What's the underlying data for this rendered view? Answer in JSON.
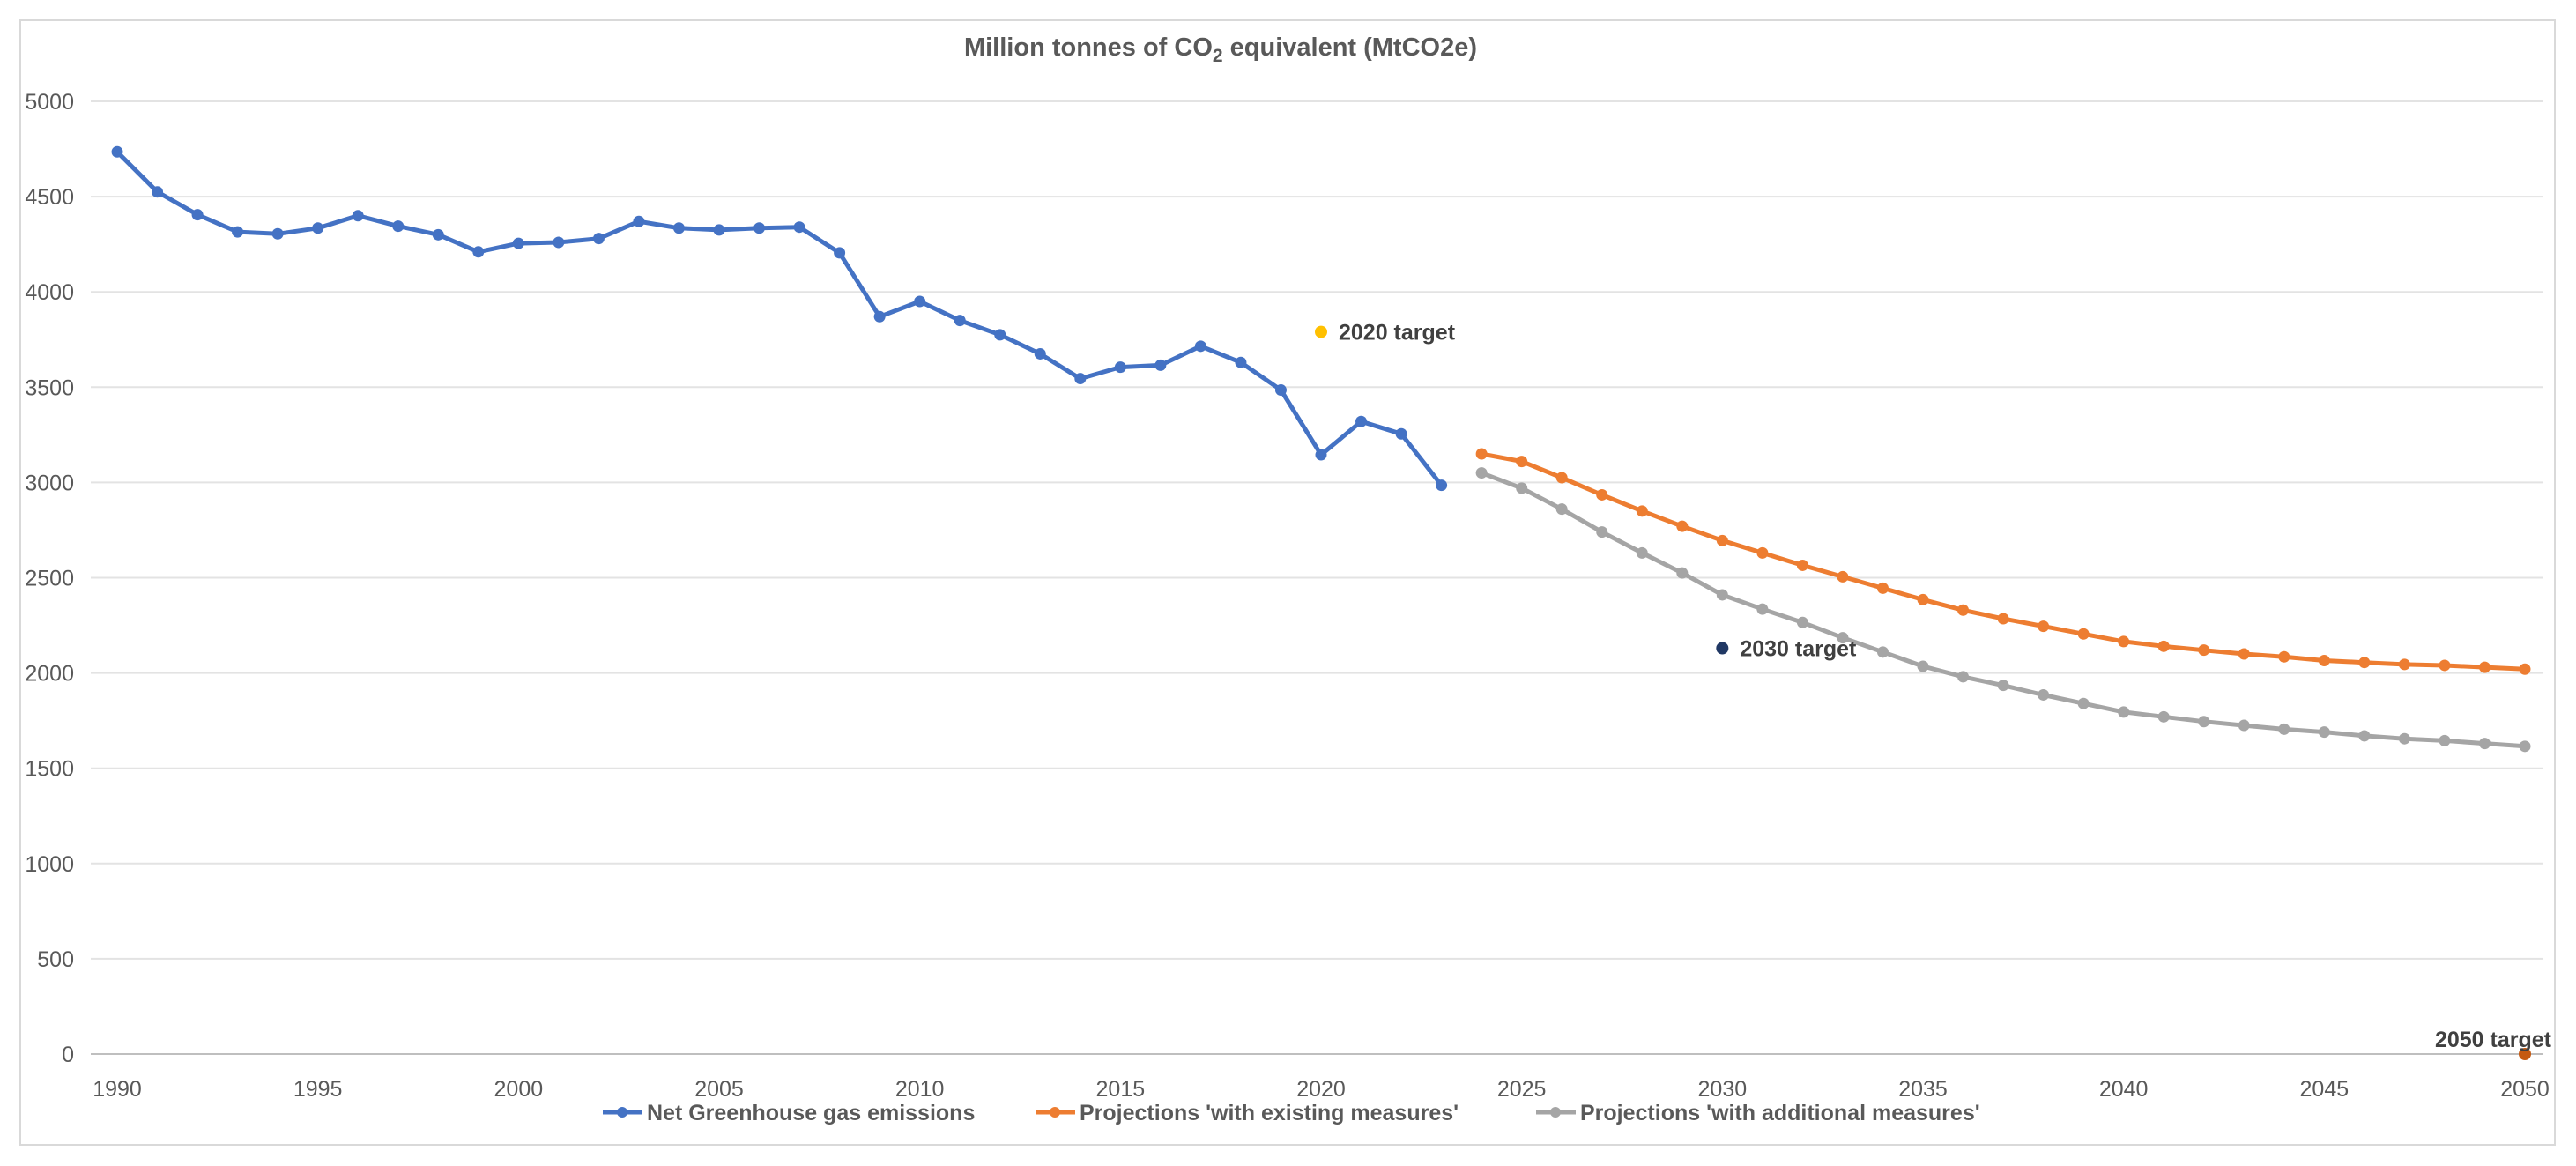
{
  "chart_data": {
    "type": "line",
    "title": {
      "prefix": "Million tonnes of CO",
      "subscript": "2",
      "suffix": " equivalent (MtCO2e)"
    },
    "xlabel": "",
    "ylabel": "",
    "xlim": [
      1990,
      2050
    ],
    "ylim": [
      0,
      5000
    ],
    "x_ticks": [
      1990,
      1995,
      2000,
      2005,
      2010,
      2015,
      2020,
      2025,
      2030,
      2035,
      2040,
      2045,
      2050
    ],
    "y_ticks": [
      0,
      500,
      1000,
      1500,
      2000,
      2500,
      3000,
      3500,
      4000,
      4500,
      5000
    ],
    "grid": "horizontal",
    "legend_position": "bottom",
    "series": [
      {
        "name": "Net Greenhouse gas emissions",
        "color": "#4472c4",
        "x": [
          1990,
          1991,
          1992,
          1993,
          1994,
          1995,
          1996,
          1997,
          1998,
          1999,
          2000,
          2001,
          2002,
          2003,
          2004,
          2005,
          2006,
          2007,
          2008,
          2009,
          2010,
          2011,
          2012,
          2013,
          2014,
          2015,
          2016,
          2017,
          2018,
          2019,
          2020,
          2021,
          2022,
          2023
        ],
        "values": [
          4735,
          4525,
          4405,
          4315,
          4305,
          4335,
          4400,
          4345,
          4300,
          4210,
          4255,
          4260,
          4280,
          4370,
          4335,
          4325,
          4335,
          4340,
          4205,
          3870,
          3950,
          3850,
          3775,
          3675,
          3545,
          3605,
          3615,
          3715,
          3630,
          3485,
          3145,
          3320,
          3255,
          2985
        ]
      },
      {
        "name": "Projections 'with existing measures'",
        "color": "#ed7d31",
        "x": [
          2024,
          2025,
          2026,
          2027,
          2028,
          2029,
          2030,
          2031,
          2032,
          2033,
          2034,
          2035,
          2036,
          2037,
          2038,
          2039,
          2040,
          2041,
          2042,
          2043,
          2044,
          2045,
          2046,
          2047,
          2048,
          2049,
          2050
        ],
        "values": [
          3150,
          3110,
          3025,
          2935,
          2850,
          2770,
          2695,
          2630,
          2565,
          2505,
          2445,
          2385,
          2330,
          2285,
          2245,
          2205,
          2165,
          2140,
          2120,
          2100,
          2085,
          2065,
          2055,
          2045,
          2040,
          2030,
          2020
        ]
      },
      {
        "name": "Projections 'with additional measures'",
        "color": "#a5a5a5",
        "x": [
          2024,
          2025,
          2026,
          2027,
          2028,
          2029,
          2030,
          2031,
          2032,
          2033,
          2034,
          2035,
          2036,
          2037,
          2038,
          2039,
          2040,
          2041,
          2042,
          2043,
          2044,
          2045,
          2046,
          2047,
          2048,
          2049,
          2050
        ],
        "values": [
          3050,
          2970,
          2860,
          2740,
          2630,
          2525,
          2410,
          2335,
          2265,
          2185,
          2110,
          2035,
          1980,
          1935,
          1885,
          1840,
          1795,
          1770,
          1745,
          1725,
          1705,
          1690,
          1670,
          1655,
          1645,
          1630,
          1615
        ]
      }
    ],
    "annotations": [
      {
        "label": "2020 target",
        "x": 2020,
        "y": 3790,
        "color": "#ffc000",
        "text_side": "right"
      },
      {
        "label": "2030 target",
        "x": 2030,
        "y": 2130,
        "color": "#203864",
        "text_side": "right"
      },
      {
        "label": "2050 target",
        "x": 2050,
        "y": 0,
        "color": "#c55a11",
        "text_side": "above"
      }
    ]
  }
}
